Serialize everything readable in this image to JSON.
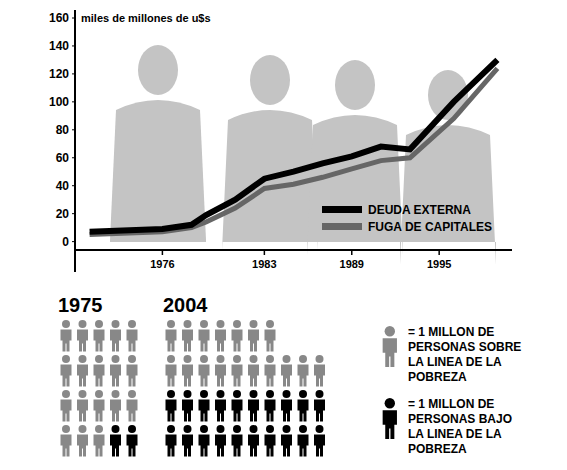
{
  "chart_data": [
    {
      "type": "line",
      "y_label": "miles de millones de u$s",
      "x": [
        1971,
        1976,
        1978,
        1979,
        1981,
        1983,
        1985,
        1987,
        1989,
        1991,
        1993,
        1996,
        1999
      ],
      "series": [
        {
          "name": "DEUDA EXTERNA",
          "color": "#000000",
          "values": [
            7,
            9,
            12,
            19,
            30,
            45,
            50,
            56,
            61,
            68,
            66,
            100,
            130
          ]
        },
        {
          "name": "FUGA DE CAPITALES",
          "color": "#666666",
          "values": [
            5,
            7,
            10,
            14,
            24,
            38,
            41,
            46,
            52,
            58,
            60,
            88,
            124
          ]
        }
      ],
      "xlim": [
        1970,
        2000
      ],
      "xticks": [
        1976,
        1983,
        1989,
        1995
      ],
      "ylim": [
        -6,
        160
      ],
      "yticks": [
        0,
        20,
        40,
        60,
        80,
        100,
        120,
        140,
        160
      ],
      "grid": false,
      "legend": "bottom-right"
    },
    {
      "type": "pictograph",
      "categories": [
        "1975",
        "2004"
      ],
      "series": [
        {
          "name": "= 1 MILLON DE PERSONAS SOBRE LA LINEA DE LA POBREZA",
          "color": "#888888",
          "values": [
            18,
            17
          ]
        },
        {
          "name": "= 1 MILLON DE PERSONAS BAJO LA LINEA DE LA POBREZA",
          "color": "#000000",
          "values": [
            2,
            20
          ]
        }
      ],
      "legend": "right"
    }
  ]
}
